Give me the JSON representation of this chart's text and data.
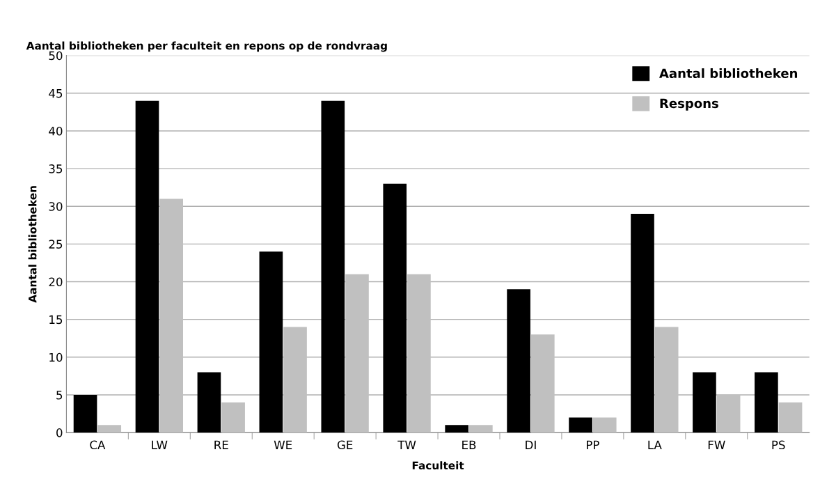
{
  "chart_data": {
    "type": "bar",
    "title": "Aantal bibliotheken per faculteit en repons op de rondvraag",
    "xlabel": "Faculteit",
    "ylabel": "Aantal bibliotheken",
    "categories": [
      "CA",
      "LW",
      "RE",
      "WE",
      "GE",
      "TW",
      "EB",
      "DI",
      "PP",
      "LA",
      "FW",
      "PS"
    ],
    "series": [
      {
        "name": "Aantal bibliotheken",
        "color": "#000000",
        "values": [
          5,
          44,
          8,
          24,
          44,
          33,
          1,
          19,
          2,
          29,
          8,
          8
        ]
      },
      {
        "name": "Respons",
        "color": "#c0c0c0",
        "values": [
          1,
          31,
          4,
          14,
          21,
          21,
          1,
          13,
          2,
          14,
          5,
          4
        ]
      }
    ],
    "ylim": [
      0,
      50
    ],
    "yticks": [
      0,
      5,
      10,
      15,
      20,
      25,
      30,
      35,
      40,
      45,
      50
    ],
    "grid": "y",
    "legend": "top right"
  }
}
